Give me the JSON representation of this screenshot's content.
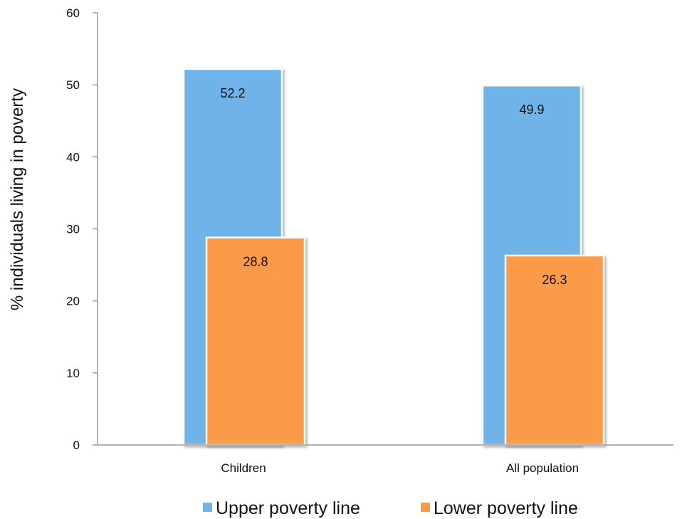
{
  "chart_data": {
    "type": "bar",
    "title": "",
    "xlabel": "",
    "ylabel": "% individuals living in poverty",
    "categories": [
      "Children",
      "All population"
    ],
    "series": [
      {
        "name": "Upper poverty line",
        "values": [
          52.2,
          49.9
        ],
        "color": "#6fb3e9"
      },
      {
        "name": "Lower poverty line",
        "values": [
          28.8,
          26.3
        ],
        "color": "#fb9a48"
      }
    ],
    "ylim": [
      0,
      60
    ],
    "yticks": [
      0,
      10,
      20,
      30,
      40,
      50,
      60
    ],
    "data_labels": true,
    "grid": false,
    "legend_position": "bottom",
    "bar_arrangement": "overlapped"
  }
}
